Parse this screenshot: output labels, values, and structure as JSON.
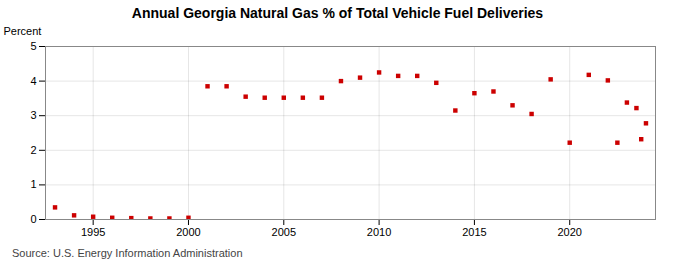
{
  "chart_data": {
    "type": "scatter",
    "title": "Annual Georgia Natural Gas % of Total Vehicle Fuel Deliveries",
    "ylabel": "Percent",
    "caption": "Source: U.S. Energy Information Administration",
    "x": [
      1993,
      1994,
      1995,
      1996,
      1997,
      1998,
      1999,
      2000,
      2001,
      2002,
      2003,
      2004,
      2005,
      2006,
      2007,
      2008,
      2009,
      2010,
      2011,
      2012,
      2013,
      2014,
      2015,
      2016,
      2017,
      2018,
      2019,
      2020,
      2021,
      2022,
      2023,
      2023.5,
      2024,
      2022.5,
      2023.75
    ],
    "values": [
      0.35,
      0.12,
      0.08,
      0.05,
      0.04,
      0.03,
      0.03,
      0.05,
      3.85,
      3.85,
      3.55,
      3.52,
      3.52,
      3.52,
      3.52,
      4.0,
      4.1,
      4.25,
      4.15,
      4.15,
      3.95,
      3.15,
      3.65,
      3.7,
      3.3,
      3.05,
      4.05,
      2.22,
      4.18,
      4.02,
      3.38,
      3.22,
      2.78,
      2.22,
      2.32
    ],
    "color": "#cc0000",
    "marker": "square",
    "xlim": [
      1992.5,
      2024.5
    ],
    "xticks": [
      1995,
      2000,
      2005,
      2010,
      2015,
      2020
    ],
    "ylim": [
      0,
      5
    ],
    "yticks": [
      0,
      1,
      2,
      3,
      4,
      5
    ],
    "grid": true
  }
}
